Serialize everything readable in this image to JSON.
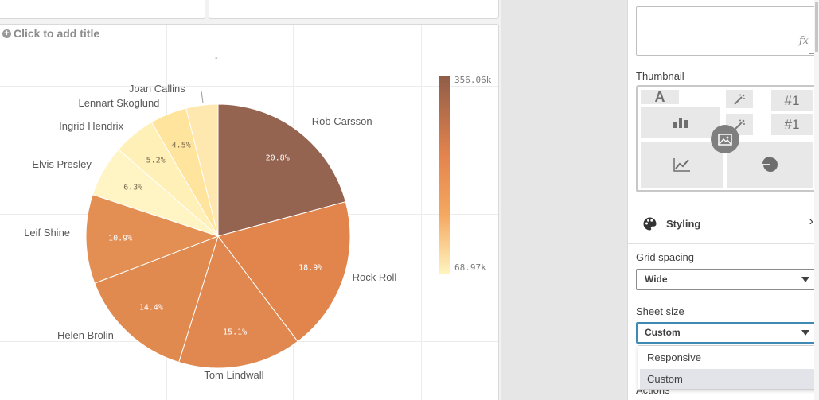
{
  "canvas": {
    "add_title": "Click to add title",
    "minor_mark": "-"
  },
  "chart_data": {
    "type": "pie",
    "slices": [
      {
        "label": "Rob Carsson",
        "pct": "20.8%",
        "value": 20.8,
        "color": "#946450"
      },
      {
        "label": "Rock Roll",
        "pct": "18.9%",
        "value": 18.9,
        "color": "#e1854d"
      },
      {
        "label": "Tom Lindwall",
        "pct": "15.1%",
        "value": 15.1,
        "color": "#e0884f"
      },
      {
        "label": "Helen Brolin",
        "pct": "14.4%",
        "value": 14.4,
        "color": "#e08a50"
      },
      {
        "label": "Leif Shine",
        "pct": "10.9%",
        "value": 10.9,
        "color": "#e38e53"
      },
      {
        "label": "Elvis Presley",
        "pct": "6.3%",
        "value": 6.3,
        "color": "#fff4c4"
      },
      {
        "label": "Ingrid Hendrix",
        "pct": "5.2%",
        "value": 5.2,
        "color": "#fff0b8"
      },
      {
        "label": "Lennart Skoglund",
        "pct": "4.5%",
        "value": 4.5,
        "color": "#ffe49e"
      },
      {
        "label": "Joan Callins",
        "pct": "",
        "value": 3.9,
        "color": "#ffe8b0"
      }
    ],
    "legend": {
      "max": "356.06k",
      "min": "68.97k",
      "placement": "right"
    }
  },
  "properties": {
    "thumbnail_label": "Thumbnail",
    "thumbnail_cells": {
      "a": "A",
      "n1": "#1",
      "n2": "#1"
    },
    "styling_label": "Styling",
    "grid_spacing_label": "Grid spacing",
    "grid_spacing_value": "Wide",
    "sheet_size_label": "Sheet size",
    "sheet_size_value": "Custom",
    "sheet_size_options": [
      "Responsive",
      "Custom"
    ],
    "actions_label": "Actions",
    "fx_symbol": "fx"
  }
}
